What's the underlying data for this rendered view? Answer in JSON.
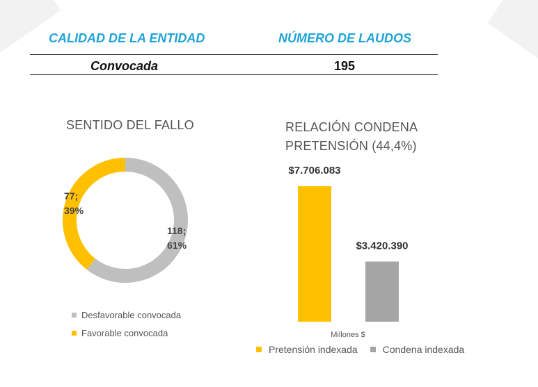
{
  "table": {
    "col1_header": "CALIDAD DE LA ENTIDAD",
    "col2_header": "NÚMERO DE LAUDOS",
    "row_label": "Convocada",
    "row_value": "195"
  },
  "colors": {
    "yellow": "#FFC000",
    "gray": "#BFBFBF",
    "darkgray": "#A5A5A5",
    "blue": "#1FA3D9"
  },
  "chart_data": [
    {
      "type": "pie",
      "title": "SENTIDO DEL FALLO",
      "slices": [
        {
          "name": "Desfavorable convocada",
          "value": 118,
          "percent": 61,
          "label": "118;\n61%",
          "color": "#BFBFBF"
        },
        {
          "name": "Favorable convocada",
          "value": 77,
          "percent": 39,
          "label": "77;\n39%",
          "color": "#FFC000"
        }
      ],
      "legend": "bottom-left"
    },
    {
      "type": "bar",
      "title": "RELACIÓN CONDENA PRETENSIÓN (44,4%)",
      "xlabel": "Millones $",
      "series": [
        {
          "name": "Pretensión indexada",
          "value": 7706.083,
          "label": "$7.706.083",
          "color": "#FFC000"
        },
        {
          "name": "Condena indexada",
          "value": 3420.39,
          "label": "$3.420.390",
          "color": "#A5A5A5"
        }
      ],
      "legend": "bottom"
    }
  ]
}
